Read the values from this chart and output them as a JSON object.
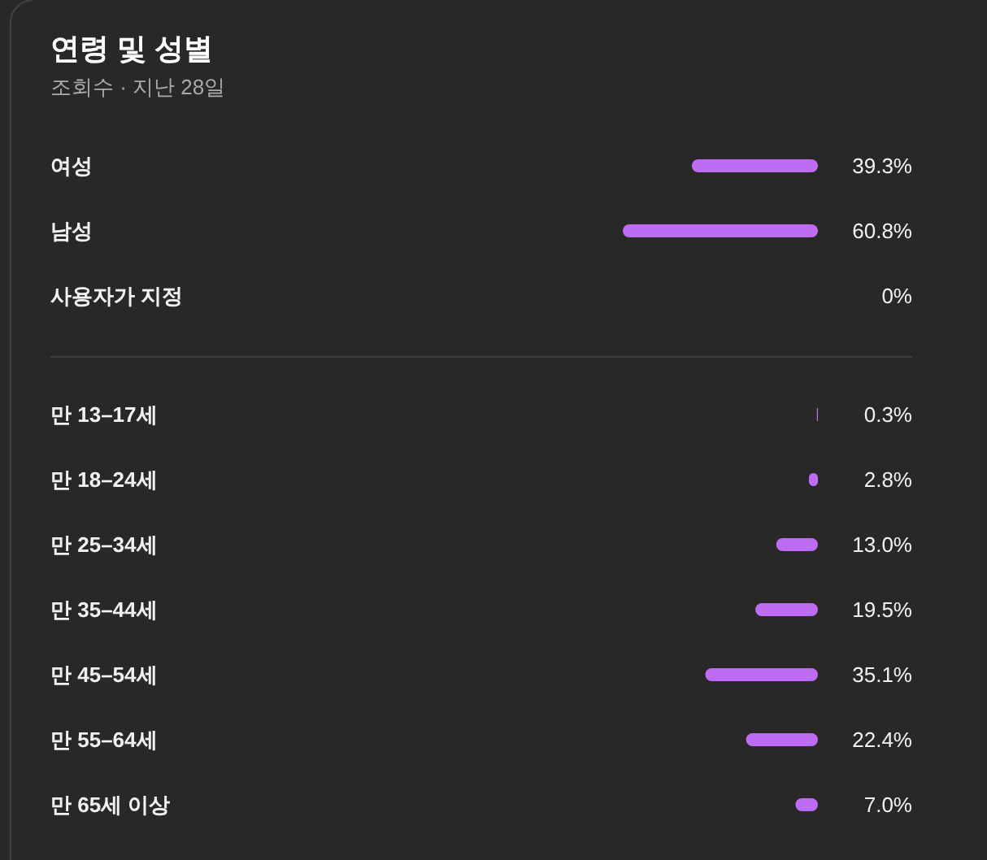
{
  "chart_data": [
    {
      "type": "bar",
      "orientation": "horizontal",
      "title": "연령 및 성별",
      "subtitle": "조회수 · 지난 28일",
      "categories": [
        "여성",
        "남성",
        "사용자가 지정"
      ],
      "values": [
        39.3,
        60.8,
        0
      ],
      "value_labels": [
        "39.3%",
        "60.8%",
        "0%"
      ],
      "color": "#be6cf3"
    },
    {
      "type": "bar",
      "orientation": "horizontal",
      "categories": [
        "만 13–17세",
        "만 18–24세",
        "만 25–34세",
        "만 35–44세",
        "만 45–54세",
        "만 55–64세",
        "만 65세 이상"
      ],
      "values": [
        0.3,
        2.8,
        13.0,
        19.5,
        35.1,
        22.4,
        7.0
      ],
      "value_labels": [
        "0.3%",
        "2.8%",
        "13.0%",
        "19.5%",
        "35.1%",
        "22.4%",
        "7.0%"
      ],
      "color": "#be6cf3"
    }
  ]
}
